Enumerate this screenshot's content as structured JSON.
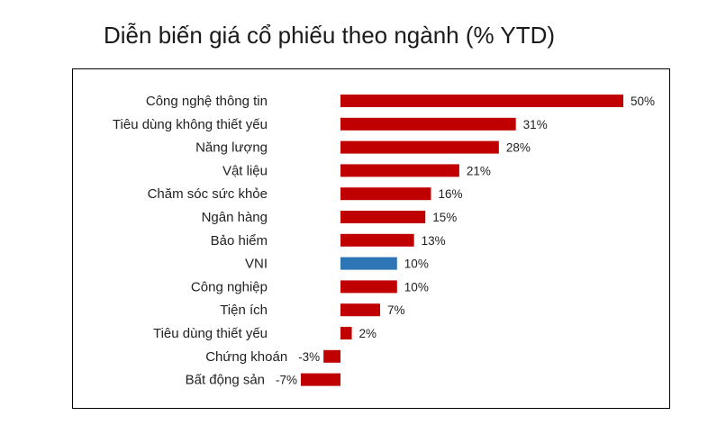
{
  "chart_data": {
    "type": "bar",
    "orientation": "horizontal",
    "title": "Diễn biến giá cổ phiếu theo ngành (% YTD)",
    "categories": [
      "Công nghệ thông tin",
      "Tiêu dùng không thiết yếu",
      "Năng lượng",
      "Vật liệu",
      "Chăm sóc sức khỏe",
      "Ngân hàng",
      "Bảo hiểm",
      "VNI",
      "Công nghiệp",
      "Tiện ích",
      "Tiêu dùng thiết yếu",
      "Chứng khoán",
      "Bất động sản"
    ],
    "values": [
      50,
      31,
      28,
      21,
      16,
      15,
      13,
      10,
      10,
      7,
      2,
      -3,
      -7
    ],
    "value_labels": [
      "50%",
      "31%",
      "28%",
      "21%",
      "16%",
      "15%",
      "13%",
      "10%",
      "10%",
      "7%",
      "2%",
      "-3%",
      "-7%"
    ],
    "xlim": [
      -7,
      50
    ],
    "grid": false,
    "colors": {
      "default": "#c00000",
      "highlight": "#2e75b6"
    },
    "highlight_category": "VNI"
  }
}
